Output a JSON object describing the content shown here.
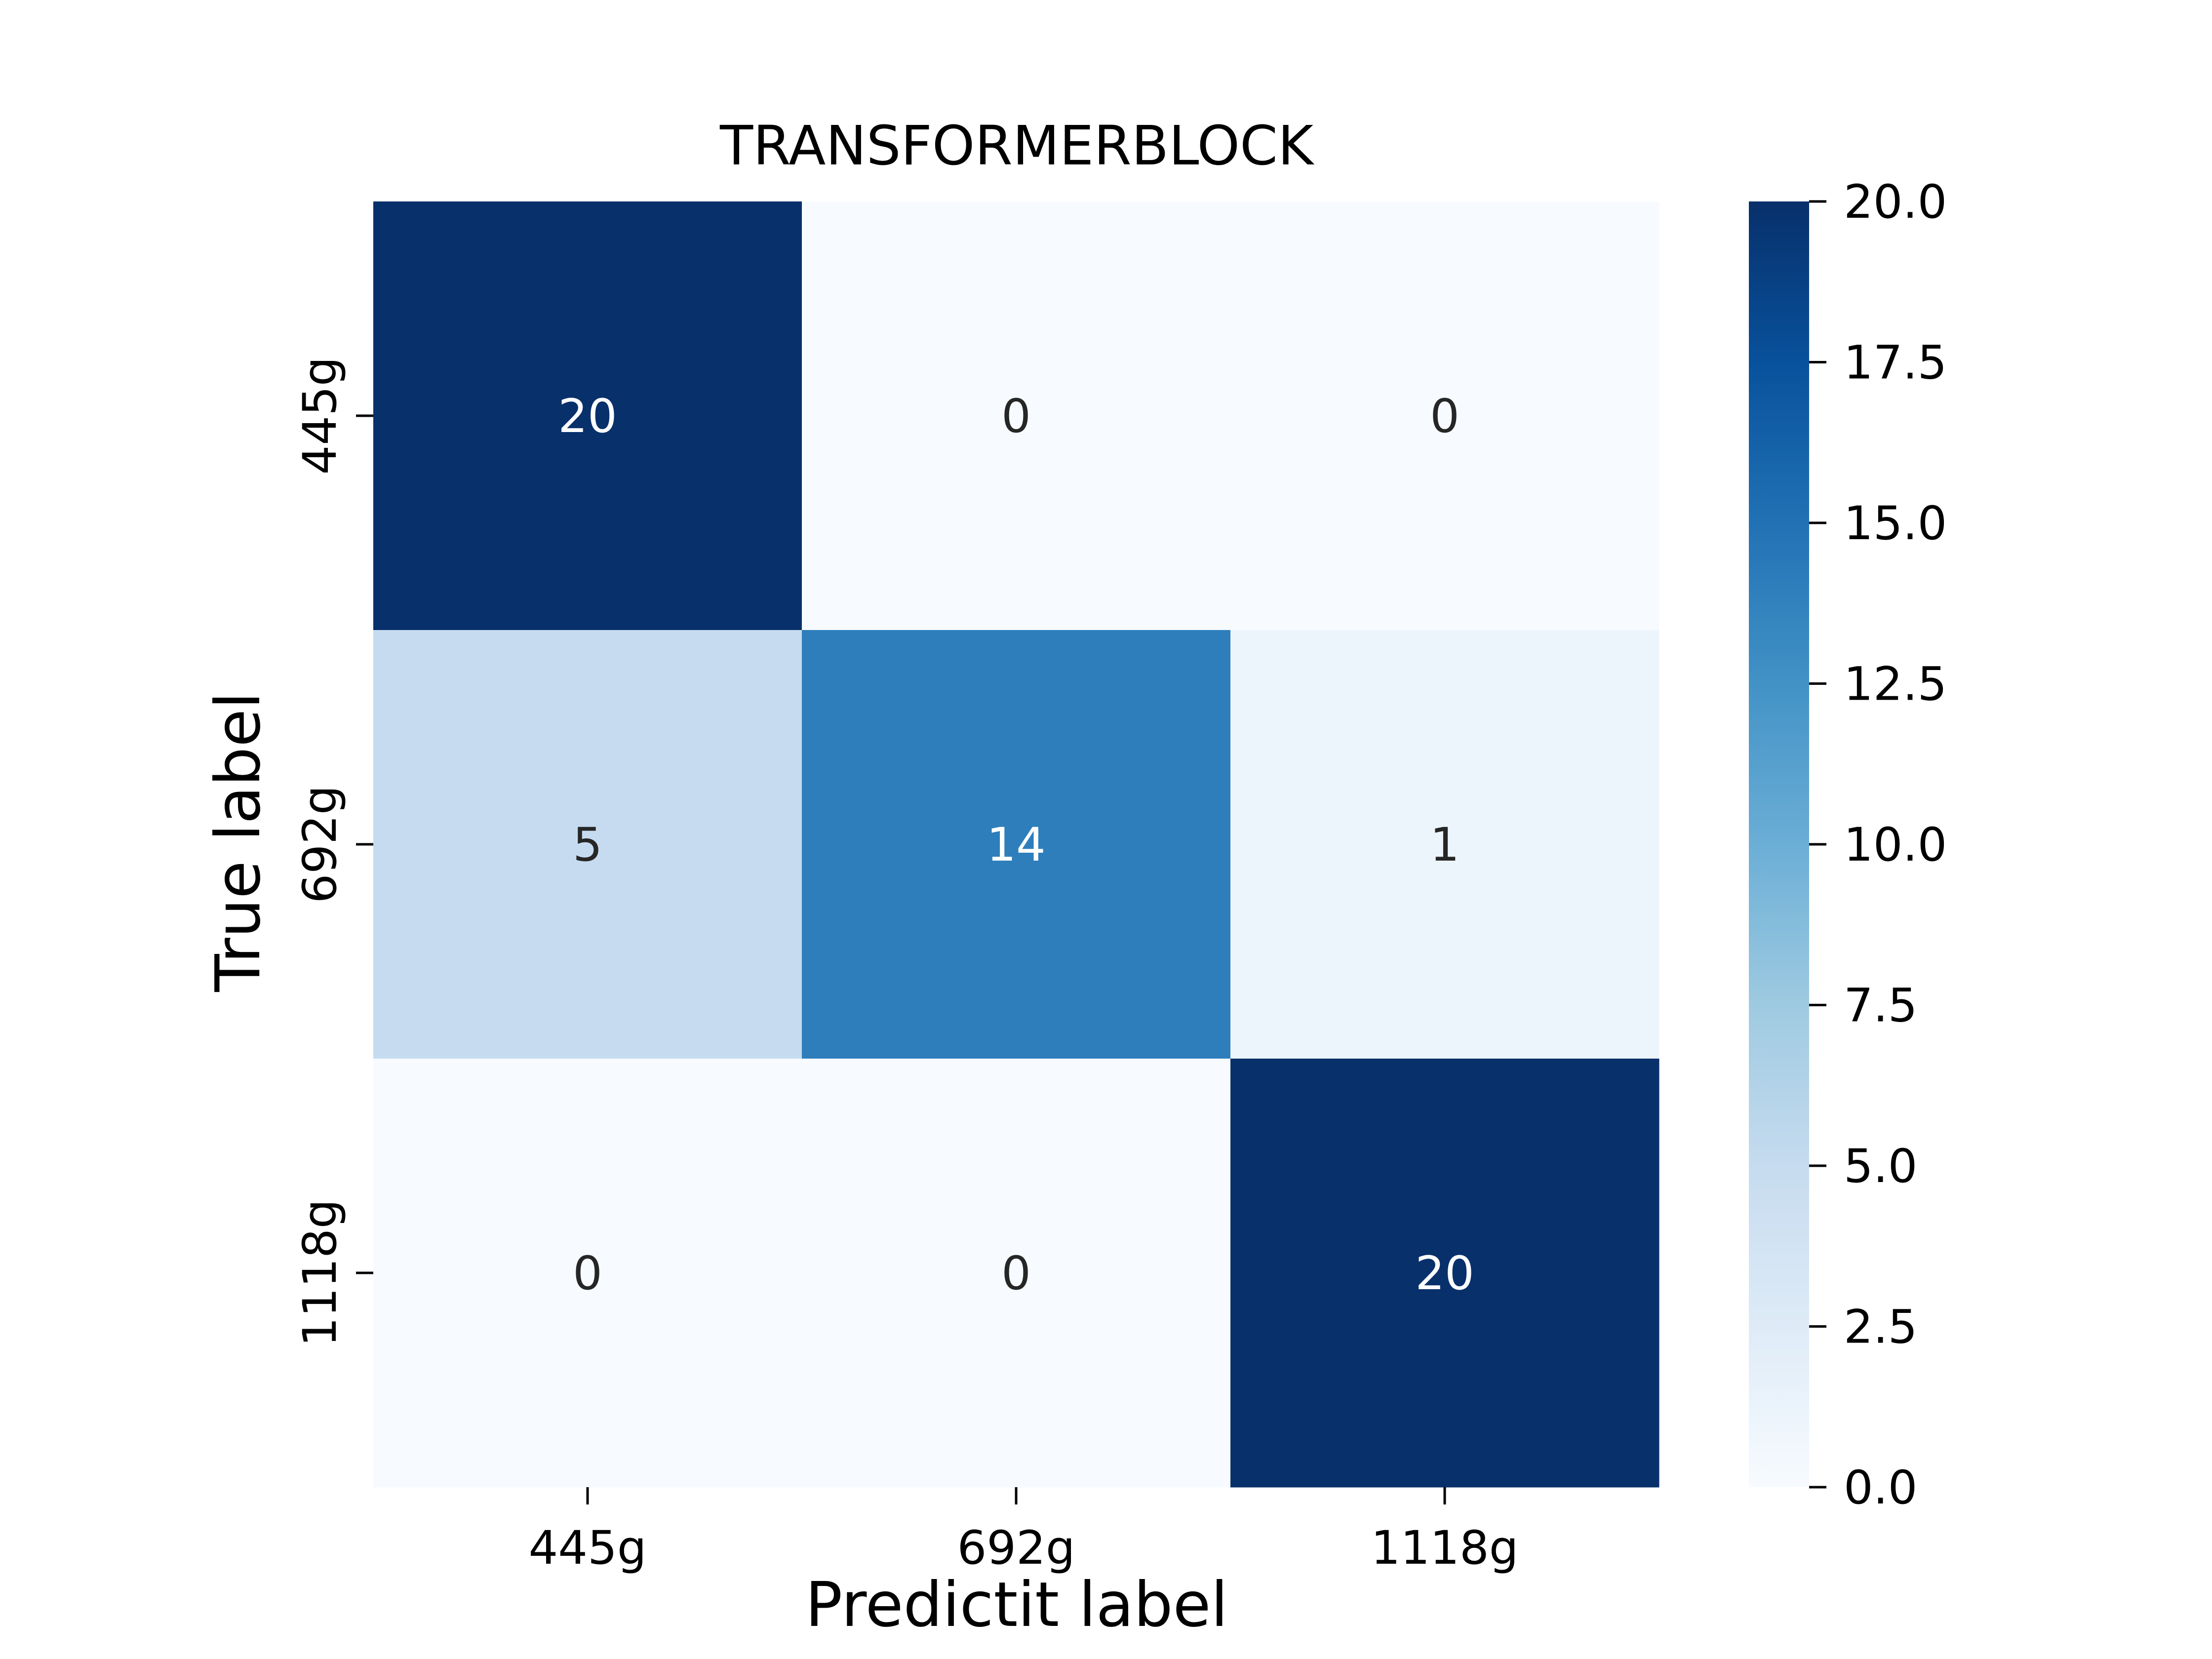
{
  "chart_data": {
    "type": "heatmap",
    "title": "TRANSFORMERBLOCK",
    "xlabel": "Predictit label",
    "ylabel": "True label",
    "x_categories": [
      "445g",
      "692g",
      "1118g"
    ],
    "y_categories": [
      "445g",
      "692g",
      "1118g"
    ],
    "values": [
      [
        20,
        0,
        0
      ],
      [
        5,
        14,
        1
      ],
      [
        0,
        0,
        20
      ]
    ],
    "colormap": "Blues",
    "colorbar": {
      "range": [
        0,
        20
      ],
      "ticks": [
        "0.0",
        "2.5",
        "5.0",
        "7.5",
        "10.0",
        "12.5",
        "15.0",
        "17.5",
        "20.0"
      ]
    },
    "grid": false
  }
}
